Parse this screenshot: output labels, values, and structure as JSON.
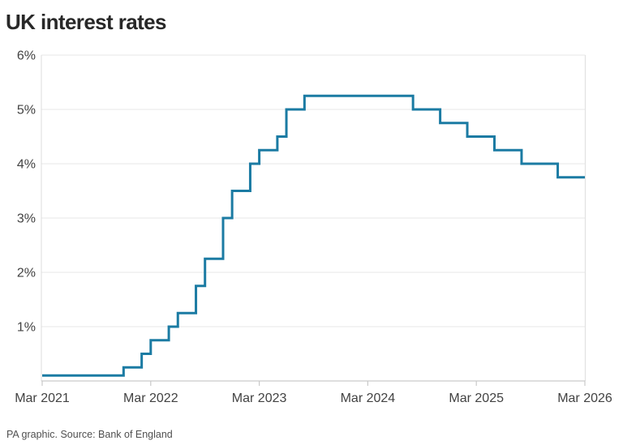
{
  "header": {
    "title": "UK interest rates"
  },
  "footer": {
    "caption": "PA graphic. Source: Bank of England"
  },
  "chart_data": {
    "type": "line",
    "variant": "step-after",
    "title": "UK interest rates",
    "xlabel": "",
    "ylabel": "",
    "legend": "none",
    "grid": true,
    "x_axis": {
      "tick_labels": [
        "Mar 2021",
        "Mar 2022",
        "Mar 2023",
        "Mar 2024",
        "Mar 2025",
        "Mar 2026"
      ],
      "months_span": 60,
      "start": "Mar 2021",
      "end": "Mar 2026"
    },
    "y_axis": {
      "tick_labels": [
        "6%",
        "5%",
        "4%",
        "3%",
        "2%",
        "1%"
      ],
      "tick_values": [
        6,
        5,
        4,
        3,
        2,
        1
      ],
      "ylim": [
        0,
        6
      ],
      "unit": "%"
    },
    "points": [
      {
        "date": "Mar 2021",
        "month": 0,
        "rate": 0.1
      },
      {
        "date": "Dec 2021",
        "month": 9,
        "rate": 0.25
      },
      {
        "date": "Feb 2022",
        "month": 11,
        "rate": 0.5
      },
      {
        "date": "Mar 2022",
        "month": 12,
        "rate": 0.75
      },
      {
        "date": "May 2022",
        "month": 14,
        "rate": 1.0
      },
      {
        "date": "Jun 2022",
        "month": 15,
        "rate": 1.25
      },
      {
        "date": "Aug 2022",
        "month": 17,
        "rate": 1.75
      },
      {
        "date": "Sep 2022",
        "month": 18,
        "rate": 2.25
      },
      {
        "date": "Nov 2022",
        "month": 20,
        "rate": 3.0
      },
      {
        "date": "Dec 2022",
        "month": 21,
        "rate": 3.5
      },
      {
        "date": "Feb 2023",
        "month": 23,
        "rate": 4.0
      },
      {
        "date": "Mar 2023",
        "month": 24,
        "rate": 4.25
      },
      {
        "date": "May 2023",
        "month": 26,
        "rate": 4.5
      },
      {
        "date": "Jun 2023",
        "month": 27,
        "rate": 5.0
      },
      {
        "date": "Aug 2023",
        "month": 29,
        "rate": 5.25
      },
      {
        "date": "Aug 2024",
        "month": 41,
        "rate": 5.0
      },
      {
        "date": "Nov 2024",
        "month": 44,
        "rate": 4.75
      },
      {
        "date": "Feb 2025",
        "month": 47,
        "rate": 4.5
      },
      {
        "date": "May 2025",
        "month": 50,
        "rate": 4.25
      },
      {
        "date": "Aug 2025",
        "month": 53,
        "rate": 4.0
      },
      {
        "date": "Dec 2025",
        "month": 57,
        "rate": 3.75
      }
    ],
    "series_end": {
      "date": "Mar 2026",
      "month": 60,
      "rate": 3.75
    },
    "colors": {
      "line": "#1b7ba3",
      "grid": "#ececec",
      "plot_border": "#e2e2e2",
      "axis": "#c9c9c9",
      "tick": "#c9c9c9",
      "axis_label": "#424242",
      "title": "#282828",
      "caption": "#4f4f4f"
    }
  }
}
